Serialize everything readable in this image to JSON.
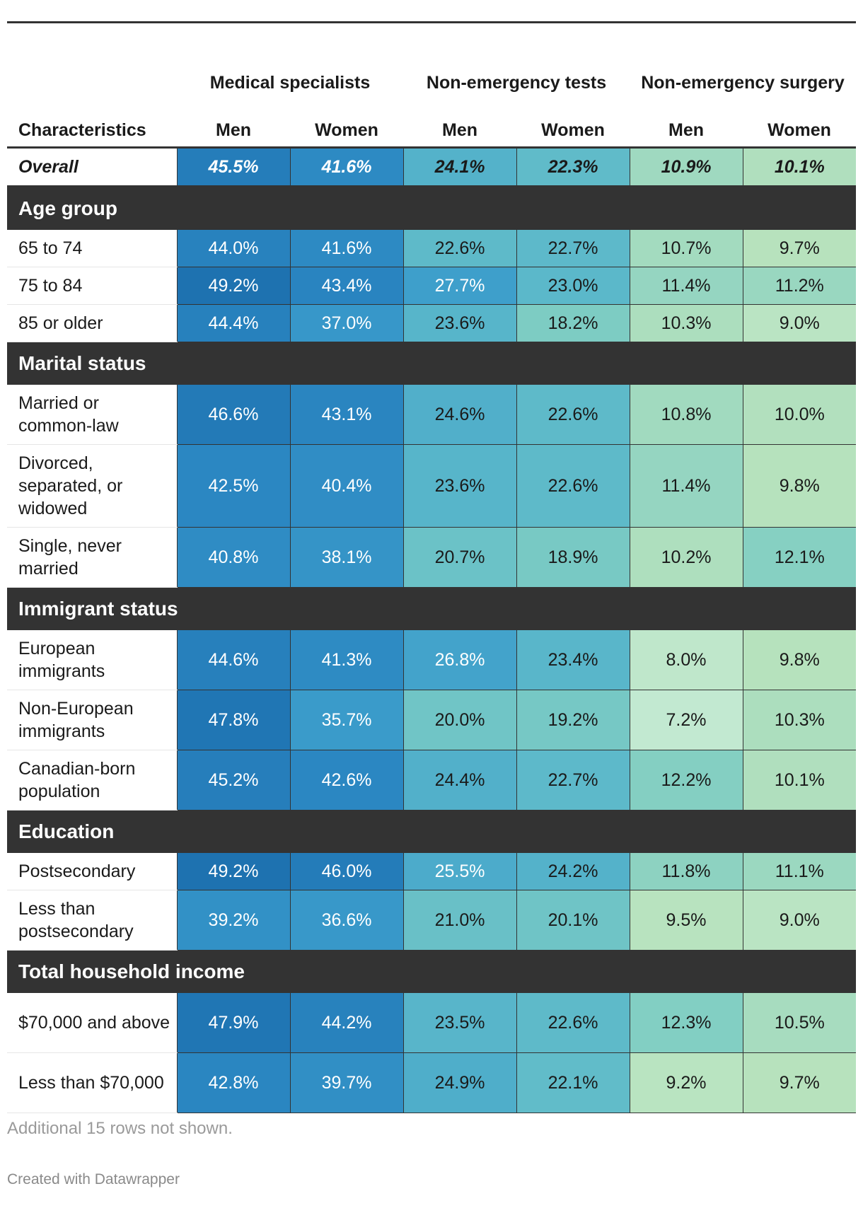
{
  "chart_data": {
    "type": "table",
    "column_groups": [
      "Medical specialists",
      "Non-emergency tests",
      "Non-emergency surgery"
    ],
    "columns": [
      "Characteristics",
      "Men",
      "Women",
      "Men",
      "Women",
      "Men",
      "Women"
    ],
    "sections": [
      {
        "title": "",
        "overall": true,
        "rows": [
          {
            "label": "Overall",
            "values": [
              "45.5%",
              "41.6%",
              "24.1%",
              "22.3%",
              "10.9%",
              "10.1%"
            ]
          }
        ]
      },
      {
        "title": "Age group",
        "rows": [
          {
            "label": "65 to 74",
            "values": [
              "44.0%",
              "41.6%",
              "22.6%",
              "22.7%",
              "10.7%",
              "9.7%"
            ]
          },
          {
            "label": "75 to 84",
            "values": [
              "49.2%",
              "43.4%",
              "27.7%",
              "23.0%",
              "11.4%",
              "11.2%"
            ]
          },
          {
            "label": "85 or older",
            "values": [
              "44.4%",
              "37.0%",
              "23.6%",
              "18.2%",
              "10.3%",
              "9.0%"
            ]
          }
        ]
      },
      {
        "title": "Marital status",
        "rows": [
          {
            "label": "Married or common-law",
            "values": [
              "46.6%",
              "43.1%",
              "24.6%",
              "22.6%",
              "10.8%",
              "10.0%"
            ]
          },
          {
            "label": "Divorced, separated, or widowed",
            "values": [
              "42.5%",
              "40.4%",
              "23.6%",
              "22.6%",
              "11.4%",
              "9.8%"
            ]
          },
          {
            "label": "Single, never married",
            "values": [
              "40.8%",
              "38.1%",
              "20.7%",
              "18.9%",
              "10.2%",
              "12.1%"
            ]
          }
        ]
      },
      {
        "title": "Immigrant status",
        "rows": [
          {
            "label": "European immigrants",
            "values": [
              "44.6%",
              "41.3%",
              "26.8%",
              "23.4%",
              "8.0%",
              "9.8%"
            ]
          },
          {
            "label": "Non-European immigrants",
            "values": [
              "47.8%",
              "35.7%",
              "20.0%",
              "19.2%",
              "7.2%",
              "10.3%"
            ]
          },
          {
            "label": "Canadian-born population",
            "values": [
              "45.2%",
              "42.6%",
              "24.4%",
              "22.7%",
              "12.2%",
              "10.1%"
            ]
          }
        ]
      },
      {
        "title": "Education",
        "rows": [
          {
            "label": "Postsecondary",
            "values": [
              "49.2%",
              "46.0%",
              "25.5%",
              "24.2%",
              "11.8%",
              "11.1%"
            ]
          },
          {
            "label": "Less than postsecondary",
            "values": [
              "39.2%",
              "36.6%",
              "21.0%",
              "20.1%",
              "9.5%",
              "9.0%"
            ]
          }
        ]
      },
      {
        "title": "Total household income",
        "rows": [
          {
            "label": "$70,000 and above",
            "values": [
              "47.9%",
              "44.2%",
              "23.5%",
              "22.6%",
              "12.3%",
              "10.5%"
            ]
          },
          {
            "label": "Less than $70,000",
            "values": [
              "42.8%",
              "39.7%",
              "24.9%",
              "22.1%",
              "9.2%",
              "9.7%"
            ]
          }
        ]
      }
    ],
    "footnote": "Additional 15 rows not shown.",
    "credit": "Created with Datawrapper",
    "colors": {
      "header_border": "#333333",
      "section_bg": "#333333",
      "scale": [
        "#c3ead3",
        "#b7e2bd",
        "#7ecdc3",
        "#5bb8ca",
        "#3c9dcb",
        "#2b87c2",
        "#1c6fae"
      ]
    }
  }
}
